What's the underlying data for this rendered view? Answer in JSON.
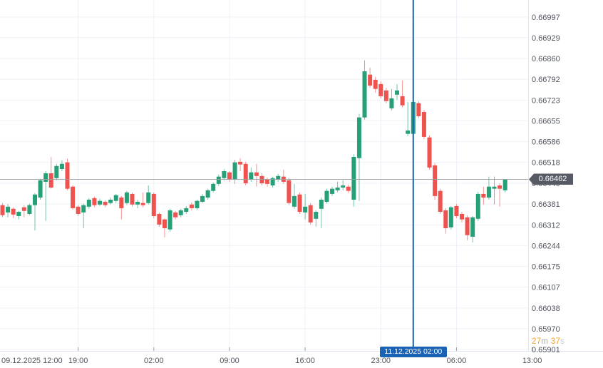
{
  "chart": {
    "background": "#ffffff",
    "grid_color": "#eef1f7",
    "border_color": "#dfe2ea",
    "tick_color": "#9aa0aa",
    "up_color": "#26a077",
    "down_color": "#ef5350",
    "label_color": "#52555d"
  },
  "y_axis": {
    "ticks": [
      "0.66997",
      "0.66929",
      "0.66860",
      "0.66792",
      "0.66723",
      "0.66655",
      "0.66586",
      "0.66518",
      "0.66449",
      "0.66381",
      "0.66312",
      "0.66244",
      "0.66175",
      "0.66107",
      "0.66038",
      "0.65970",
      "0.65901"
    ]
  },
  "x_axis": {
    "labels": [
      {
        "text": "09.12.2025 12:00",
        "index": 0,
        "align": "left"
      },
      {
        "text": "19:00",
        "index": 14,
        "align": "center"
      },
      {
        "text": "02:00",
        "index": 28,
        "align": "center"
      },
      {
        "text": "09:00",
        "index": 42,
        "align": "center"
      },
      {
        "text": "16:00",
        "index": 56,
        "align": "center"
      },
      {
        "text": "23:00",
        "index": 70,
        "align": "center"
      },
      {
        "text": "06:00",
        "index": 84,
        "align": "center"
      },
      {
        "text": "13:00",
        "index": 98,
        "align": "center"
      }
    ]
  },
  "last_price": {
    "value": "0.66462",
    "line_color": "#9aa0a6",
    "tag_bg": "#555a64"
  },
  "time_marker": {
    "label": "11.12.2025 02:00",
    "index": 76,
    "color": "#1a63b4"
  },
  "countdown": {
    "minutes": "27",
    "minutes_unit": "m",
    "seconds": "37",
    "seconds_unit": "s",
    "number_color": "#f7a123",
    "unit_color": "#a8abb3",
    "seconds_unit_color": "#c6c9cf"
  },
  "chart_data": {
    "type": "candlestick",
    "title": "",
    "start_time": "09.12.2025 12:00",
    "interval_minutes": 30,
    "price_axis_range": [
      0.65901,
      0.66997
    ],
    "last_price": 0.66462,
    "marker_time": "11.12.2025 02:00",
    "candles_ohlc": [
      [
        0.66377,
        0.66384,
        0.66337,
        0.66344
      ],
      [
        0.66353,
        0.66381,
        0.66337,
        0.66372
      ],
      [
        0.66365,
        0.6637,
        0.66335,
        0.66346
      ],
      [
        0.66341,
        0.66358,
        0.6633,
        0.66355
      ],
      [
        0.6637,
        0.66377,
        0.66337,
        0.66358
      ],
      [
        0.66348,
        0.66382,
        0.66344,
        0.66377
      ],
      [
        0.66377,
        0.66417,
        0.66294,
        0.66412
      ],
      [
        0.66402,
        0.66464,
        0.66395,
        0.66459
      ],
      [
        0.66454,
        0.66489,
        0.66325,
        0.66482
      ],
      [
        0.66482,
        0.66536,
        0.66431,
        0.66435
      ],
      [
        0.66466,
        0.66513,
        0.66459,
        0.66506
      ],
      [
        0.66496,
        0.66525,
        0.66489,
        0.66513
      ],
      [
        0.66518,
        0.6653,
        0.66426,
        0.66431
      ],
      [
        0.66438,
        0.66443,
        0.66362,
        0.66367
      ],
      [
        0.66372,
        0.66377,
        0.66341,
        0.66348
      ],
      [
        0.66353,
        0.66382,
        0.66301,
        0.66377
      ],
      [
        0.66372,
        0.664,
        0.66365,
        0.66395
      ],
      [
        0.664,
        0.66405,
        0.6637,
        0.66377
      ],
      [
        0.66379,
        0.66398,
        0.66374,
        0.66391
      ],
      [
        0.66388,
        0.66393,
        0.6637,
        0.66377
      ],
      [
        0.66384,
        0.66402,
        0.66379,
        0.66395
      ],
      [
        0.66391,
        0.66414,
        0.66384,
        0.6641
      ],
      [
        0.66402,
        0.66407,
        0.6633,
        0.66367
      ],
      [
        0.66384,
        0.66424,
        0.66377,
        0.66419
      ],
      [
        0.66414,
        0.66419,
        0.66372,
        0.66379
      ],
      [
        0.66379,
        0.66395,
        0.66367,
        0.66388
      ],
      [
        0.66384,
        0.66419,
        0.6637,
        0.66377
      ],
      [
        0.66384,
        0.66442,
        0.66379,
        0.66419
      ],
      [
        0.66414,
        0.66419,
        0.66334,
        0.66341
      ],
      [
        0.66348,
        0.66353,
        0.66306,
        0.66313
      ],
      [
        0.6633,
        0.66334,
        0.66271,
        0.66301
      ],
      [
        0.66297,
        0.66365,
        0.6629,
        0.6636
      ],
      [
        0.66353,
        0.66358,
        0.6633,
        0.66337
      ],
      [
        0.66344,
        0.66365,
        0.66337,
        0.6636
      ],
      [
        0.66355,
        0.66374,
        0.66348,
        0.66367
      ],
      [
        0.66379,
        0.66386,
        0.6636,
        0.66367
      ],
      [
        0.66367,
        0.66395,
        0.66362,
        0.66391
      ],
      [
        0.66388,
        0.66414,
        0.66384,
        0.66407
      ],
      [
        0.66402,
        0.66431,
        0.66395,
        0.66426
      ],
      [
        0.66424,
        0.66452,
        0.66419,
        0.66447
      ],
      [
        0.66447,
        0.66478,
        0.6644,
        0.66471
      ],
      [
        0.66466,
        0.66496,
        0.66459,
        0.66489
      ],
      [
        0.66485,
        0.66489,
        0.66454,
        0.66461
      ],
      [
        0.66461,
        0.66527,
        0.66447,
        0.66518
      ],
      [
        0.6652,
        0.66532,
        0.66489,
        0.66511
      ],
      [
        0.66513,
        0.6652,
        0.66442,
        0.66449
      ],
      [
        0.66461,
        0.66501,
        0.66454,
        0.66485
      ],
      [
        0.66485,
        0.66513,
        0.66438,
        0.66473
      ],
      [
        0.66473,
        0.66482,
        0.66442,
        0.66449
      ],
      [
        0.66461,
        0.66468,
        0.66438,
        0.66447
      ],
      [
        0.66442,
        0.66471,
        0.66435,
        0.66466
      ],
      [
        0.66461,
        0.6648,
        0.66454,
        0.66473
      ],
      [
        0.66471,
        0.66494,
        0.66447,
        0.66454
      ],
      [
        0.66459,
        0.66466,
        0.66377,
        0.66384
      ],
      [
        0.66372,
        0.66447,
        0.66365,
        0.66407
      ],
      [
        0.66412,
        0.66419,
        0.66348,
        0.66355
      ],
      [
        0.66353,
        0.66414,
        0.6633,
        0.66372
      ],
      [
        0.66377,
        0.66384,
        0.66313,
        0.6632
      ],
      [
        0.66332,
        0.6636,
        0.66306,
        0.66355
      ],
      [
        0.66365,
        0.66402,
        0.66301,
        0.66395
      ],
      [
        0.66388,
        0.66431,
        0.66382,
        0.66424
      ],
      [
        0.66414,
        0.66438,
        0.66407,
        0.66431
      ],
      [
        0.66426,
        0.66454,
        0.66419,
        0.66435
      ],
      [
        0.66435,
        0.66459,
        0.66426,
        0.66442
      ],
      [
        0.66438,
        0.66445,
        0.66417,
        0.66424
      ],
      [
        0.66395,
        0.66545,
        0.66372,
        0.66536
      ],
      [
        0.66532,
        0.66678,
        0.66391,
        0.66666
      ],
      [
        0.66666,
        0.66854,
        0.66659,
        0.66818
      ],
      [
        0.66807,
        0.6683,
        0.66764,
        0.66771
      ],
      [
        0.6679,
        0.668,
        0.66748,
        0.6676
      ],
      [
        0.66776,
        0.66785,
        0.66729,
        0.66736
      ],
      [
        0.66755,
        0.66764,
        0.66713,
        0.6672
      ],
      [
        0.66696,
        0.6676,
        0.66689,
        0.66729
      ],
      [
        0.66741,
        0.66776,
        0.66724,
        0.66755
      ],
      [
        0.66736,
        0.66788,
        0.66699,
        0.66706
      ],
      [
        0.66612,
        0.66717,
        0.66605,
        0.66623
      ],
      [
        0.66612,
        0.66724,
        0.66605,
        0.66717
      ],
      [
        0.66713,
        0.6672,
        0.66663,
        0.6667
      ],
      [
        0.66684,
        0.66691,
        0.66595,
        0.66602
      ],
      [
        0.666,
        0.66607,
        0.66494,
        0.66501
      ],
      [
        0.66508,
        0.66515,
        0.66395,
        0.66407
      ],
      [
        0.66424,
        0.66431,
        0.66348,
        0.66355
      ],
      [
        0.6636,
        0.66367,
        0.66283,
        0.66301
      ],
      [
        0.66304,
        0.66374,
        0.66297,
        0.6637
      ],
      [
        0.66374,
        0.66381,
        0.66334,
        0.66341
      ],
      [
        0.66348,
        0.66355,
        0.6632,
        0.6633
      ],
      [
        0.66337,
        0.66344,
        0.66261,
        0.66278
      ],
      [
        0.66273,
        0.66341,
        0.66254,
        0.66337
      ],
      [
        0.66332,
        0.66421,
        0.66325,
        0.66414
      ],
      [
        0.66414,
        0.66438,
        0.66379,
        0.66402
      ],
      [
        0.66402,
        0.66471,
        0.66395,
        0.66438
      ],
      [
        0.66431,
        0.66471,
        0.66379,
        0.66438
      ],
      [
        0.66442,
        0.66449,
        0.66372,
        0.66431
      ],
      [
        0.66426,
        0.66461,
        0.66419,
        0.66462
      ]
    ]
  }
}
